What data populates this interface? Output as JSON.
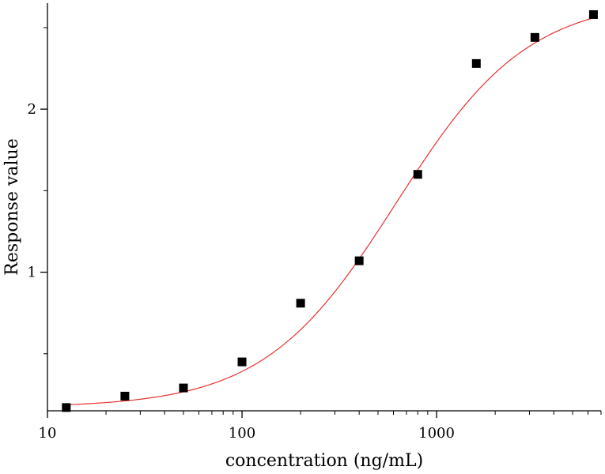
{
  "chart_data": {
    "type": "scatter",
    "title": "",
    "xlabel": "concentration (ng/mL)",
    "ylabel": "Response value",
    "x_scale": "log",
    "xlim": [
      10,
      7000
    ],
    "ylim": [
      0.15,
      2.65
    ],
    "x_ticks": [
      {
        "value": 10,
        "label": "10"
      },
      {
        "value": 100,
        "label": "100"
      },
      {
        "value": 1000,
        "label": "1000"
      }
    ],
    "y_ticks": [
      {
        "value": 1,
        "label": "1"
      },
      {
        "value": 2,
        "label": "2"
      }
    ],
    "y_minor_ticks": [
      0.5,
      1.5,
      2.5
    ],
    "grid": false,
    "legend": "none",
    "points": {
      "x": [
        12.5,
        25,
        50,
        100,
        200,
        400,
        800,
        1600,
        3200,
        6400
      ],
      "y": [
        0.17,
        0.24,
        0.29,
        0.45,
        0.81,
        1.07,
        1.6,
        2.28,
        2.44,
        2.58
      ]
    },
    "fit_curve": {
      "model": "4PL",
      "bottom": 0.17,
      "top": 2.68,
      "ec50": 620,
      "hill": 1.28,
      "x_range": [
        12.5,
        6400
      ]
    },
    "colors": {
      "points": "#000000",
      "fit": "#e8312f",
      "axis": "#000000"
    }
  }
}
